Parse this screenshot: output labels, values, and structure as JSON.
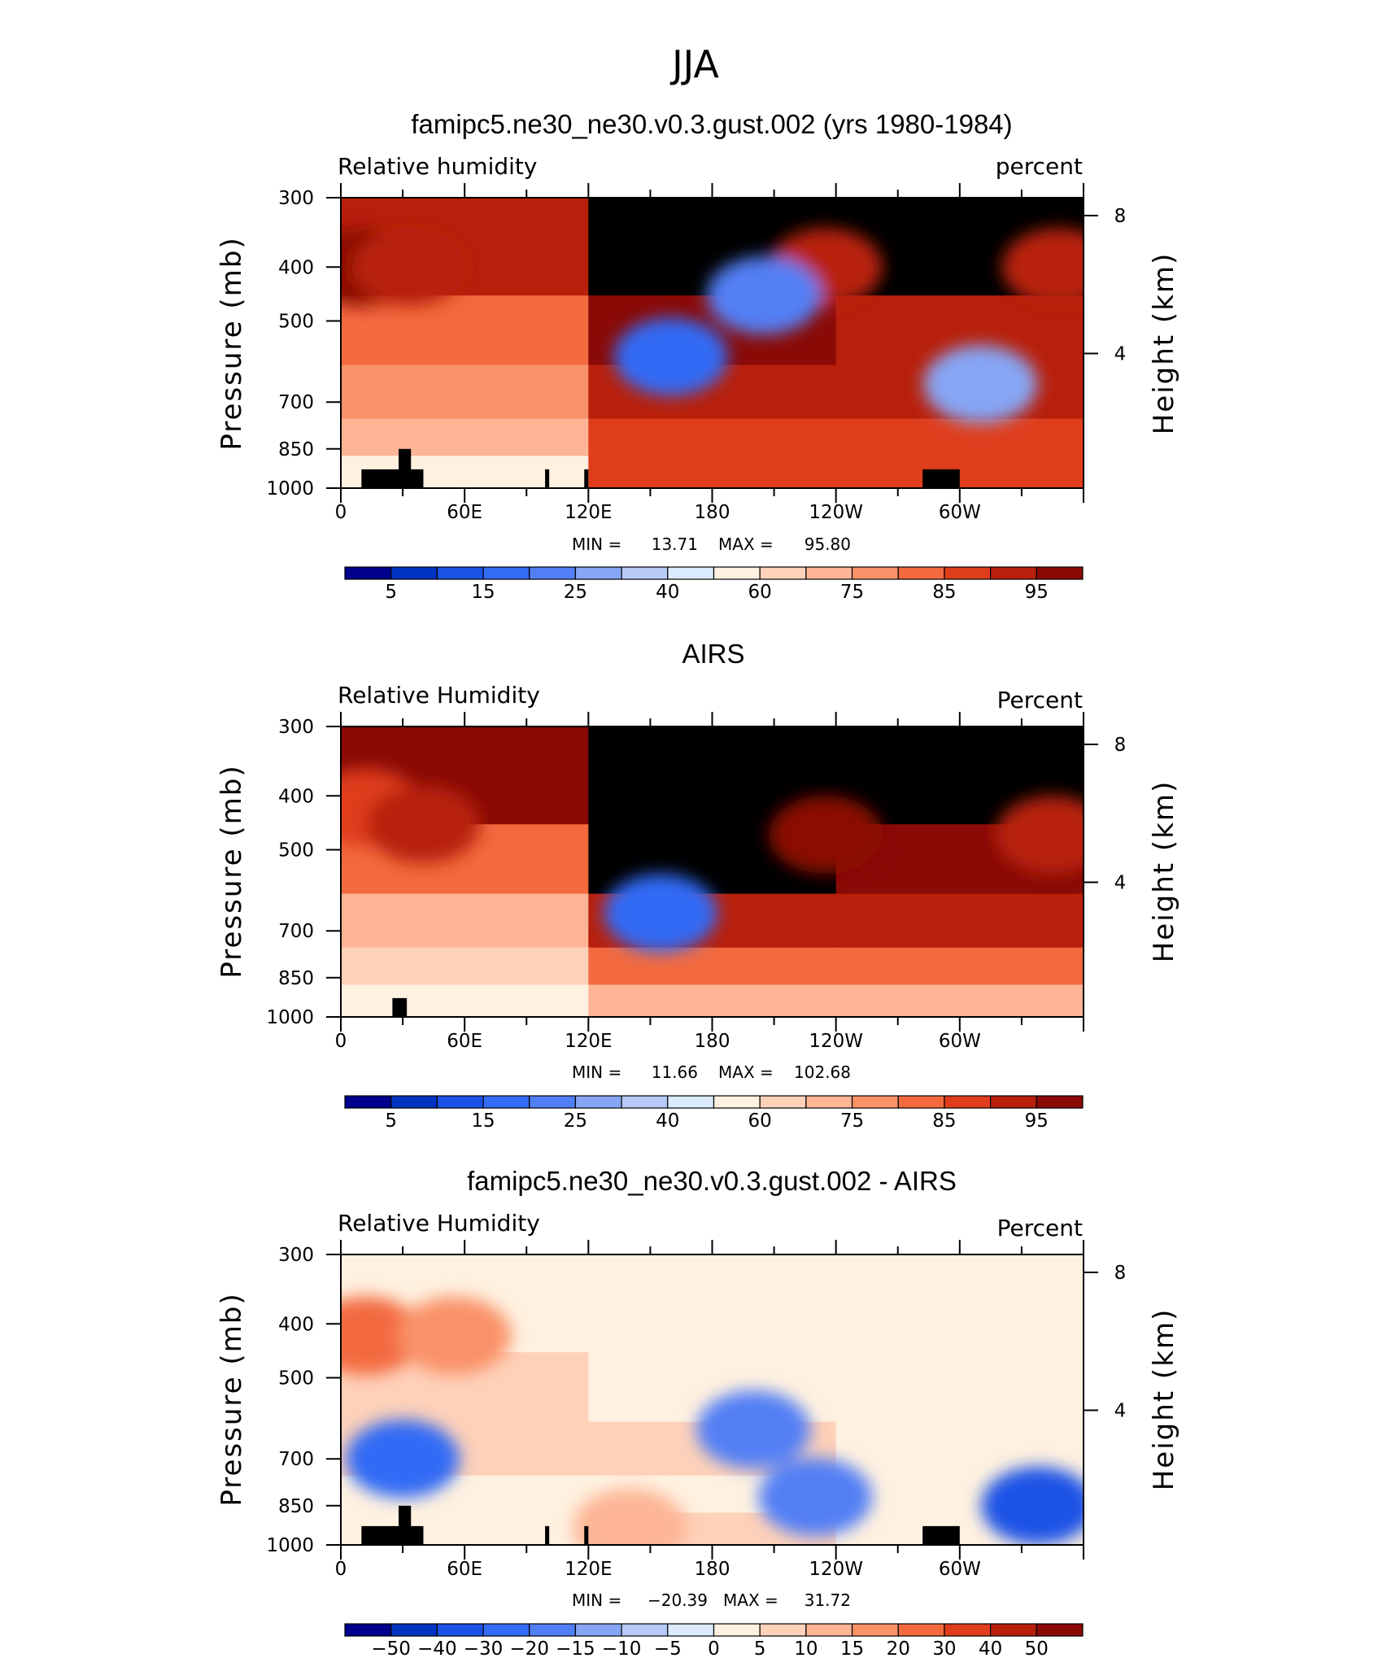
{
  "chart_data": {
    "type": "heatmap",
    "title": "JJA",
    "x_ticks": [
      "0",
      "60E",
      "120E",
      "180",
      "120W",
      "60W"
    ],
    "pressure_ticks": [
      300,
      400,
      500,
      700,
      850,
      1000
    ],
    "height_ticks": [
      8,
      4
    ],
    "ylabel": "Pressure (mb)",
    "y2label": "Height (km)",
    "colors": {
      "full": [
        "#00008c",
        "#0033bf",
        "#1a52e6",
        "#336bf5",
        "#527ff5",
        "#86a6f5",
        "#b6c9f7",
        "#daeafc",
        "#fff1e0",
        "#fed1b9",
        "#fdb595",
        "#f99269",
        "#f36a3f",
        "#df3e1c",
        "#b8200c",
        "#8a0a06"
      ],
      "diff": [
        "#00008c",
        "#0033bf",
        "#1a52e6",
        "#336bf5",
        "#527ff5",
        "#86a6f5",
        "#b6c9f7",
        "#daeafc",
        "#fff1e0",
        "#fed1b9",
        "#fdb595",
        "#f99269",
        "#f36a3f",
        "#df3e1c",
        "#b8200c",
        "#8a0a06"
      ]
    },
    "panels": [
      {
        "title": "famipc5.ne30_ne30.v0.3.gust.002 (yrs 1980-1984)",
        "left_label": "Relative humidity",
        "right_label": "percent",
        "min_label": "MIN =",
        "min": "13.71",
        "max_label": "MAX =",
        "max": "95.80",
        "colorbar": [
          "5",
          "15",
          "25",
          "40",
          "60",
          "75",
          "85",
          "95"
        ],
        "bands": [
          [
            14,
            16,
            16
          ],
          [
            12,
            15,
            14
          ],
          [
            11,
            14,
            14
          ],
          [
            10,
            13,
            13
          ],
          [
            8,
            13,
            13
          ]
        ],
        "blobs": [
          {
            "lon": 10,
            "p": 400,
            "v": 15
          },
          {
            "lon": 33,
            "p": 400,
            "v": 14
          },
          {
            "lon": 160,
            "p": 580,
            "v": 3
          },
          {
            "lon": 235,
            "p": 400,
            "v": 14
          },
          {
            "lon": 205,
            "p": 450,
            "v": 4
          },
          {
            "lon": 310,
            "p": 650,
            "v": 5
          },
          {
            "lon": 348,
            "p": 400,
            "v": 14
          }
        ]
      },
      {
        "title": "AIRS",
        "left_label": "Relative Humidity",
        "right_label": "Percent",
        "min_label": "MIN =",
        "min": "11.66",
        "max_label": "MAX =",
        "max": "102.68",
        "colorbar": [
          "5",
          "15",
          "25",
          "40",
          "60",
          "75",
          "85",
          "95"
        ],
        "bands": [
          [
            15,
            16,
            16
          ],
          [
            12,
            16,
            15
          ],
          [
            10,
            14,
            14
          ],
          [
            9,
            12,
            12
          ],
          [
            8,
            10,
            10
          ]
        ],
        "blobs": [
          {
            "lon": 12,
            "p": 420,
            "v": 13
          },
          {
            "lon": 40,
            "p": 450,
            "v": 14
          },
          {
            "lon": 155,
            "p": 650,
            "v": 3
          },
          {
            "lon": 235,
            "p": 470,
            "v": 15
          },
          {
            "lon": 345,
            "p": 470,
            "v": 14
          }
        ]
      },
      {
        "title": "famipc5.ne30_ne30.v0.3.gust.002 - AIRS",
        "left_label": "Relative Humidity",
        "right_label": "Percent",
        "min_label": "MIN =",
        "min": "−20.39",
        "max_label": "MAX =",
        "max": "31.72",
        "colorbar": [
          "−50",
          "−40",
          "−30",
          "−20",
          "−15",
          "−10",
          "−5",
          "0",
          "5",
          "10",
          "15",
          "20",
          "30",
          "40",
          "50"
        ],
        "bands": [
          [
            8,
            8,
            8
          ],
          [
            9,
            8,
            8
          ],
          [
            9,
            9,
            8
          ],
          [
            8,
            8,
            8
          ],
          [
            8,
            9,
            8
          ]
        ],
        "blobs": [
          {
            "lon": 200,
            "p": 620,
            "v": 4
          },
          {
            "lon": 230,
            "p": 820,
            "v": 4
          },
          {
            "lon": 140,
            "p": 930,
            "v": 10
          },
          {
            "lon": 12,
            "p": 420,
            "v": 12
          },
          {
            "lon": 55,
            "p": 420,
            "v": 11
          },
          {
            "lon": 30,
            "p": 700,
            "v": 3
          },
          {
            "lon": 338,
            "p": 850,
            "v": 2
          }
        ]
      }
    ]
  }
}
